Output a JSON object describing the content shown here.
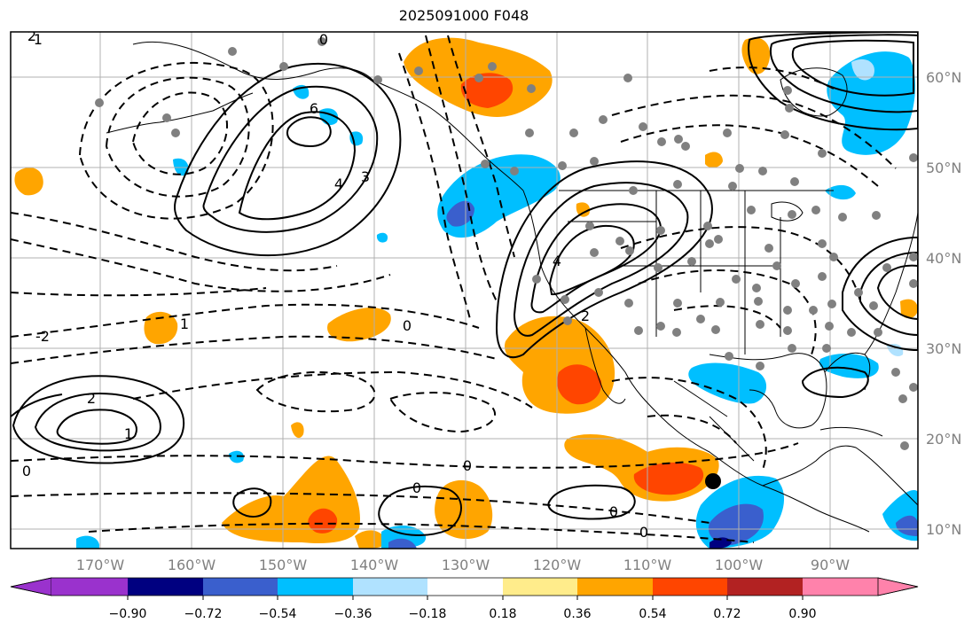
{
  "title": "2025091000 F048",
  "lon_labels": [
    "170°W",
    "160°W",
    "150°W",
    "140°W",
    "130°W",
    "120°W",
    "110°W",
    "100°W",
    "90°W"
  ],
  "lat_labels": [
    "60°N",
    "50°N",
    "40°N",
    "30°N",
    "20°N",
    "10°N"
  ],
  "colorbar": {
    "colors": [
      "#9a32cd",
      "#000080",
      "#3a5fcd",
      "#00bfff",
      "#b0e2ff",
      "#ffffff",
      "#ffec8b",
      "#ffa500",
      "#ff4500",
      "#b22222",
      "#ff82ab"
    ],
    "tick_labels": [
      "−0.90",
      "−0.72",
      "−0.54",
      "−0.36",
      "−0.18",
      "0.18",
      "0.36",
      "0.54",
      "0.72",
      "0.90"
    ]
  },
  "contour_labels": [
    {
      "text": "0"
    },
    {
      "text": "1"
    },
    {
      "text": "2"
    },
    {
      "text": "3"
    },
    {
      "text": "4"
    },
    {
      "text": "6"
    },
    {
      "text": "-2"
    },
    {
      "text": "-1"
    },
    {
      "text": "0"
    },
    {
      "text": "2"
    },
    {
      "text": "0"
    },
    {
      "text": "0"
    },
    {
      "text": "1"
    },
    {
      "text": "0"
    },
    {
      "text": "0"
    },
    {
      "text": "2"
    },
    {
      "text": "4"
    },
    {
      "text": "0"
    }
  ],
  "colors": {
    "land": "#000000",
    "grid": "#b0b0b0",
    "station": "#808080",
    "marker": "#000000"
  }
}
